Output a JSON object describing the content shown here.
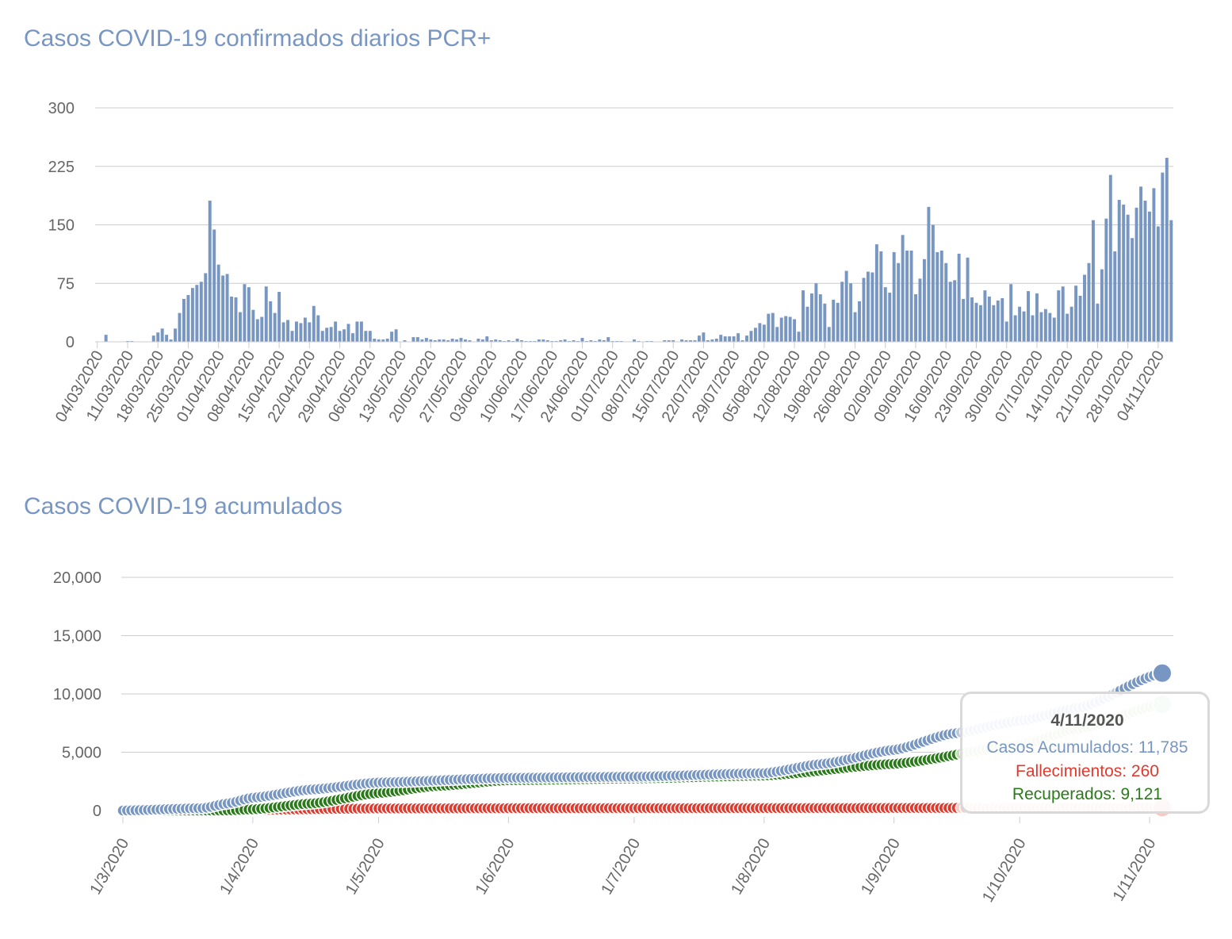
{
  "chart_data": [
    {
      "type": "bar",
      "title": "Casos COVID-19 confirmados diarios PCR+",
      "ylim": [
        0,
        300
      ],
      "yticks": [
        0,
        75,
        150,
        225,
        300
      ],
      "grid": true,
      "start_date": "04/03/2020",
      "xtick_labels": [
        "04/03/2020",
        "11/03/2020",
        "18/03/2020",
        "25/03/2020",
        "01/04/2020",
        "08/04/2020",
        "15/04/2020",
        "22/04/2020",
        "29/04/2020",
        "06/05/2020",
        "13/05/2020",
        "20/05/2020",
        "27/05/2020",
        "03/06/2020",
        "10/06/2020",
        "17/06/2020",
        "24/06/2020",
        "01/07/2020",
        "08/07/2020",
        "15/07/2020",
        "22/07/2020",
        "29/07/2020",
        "05/08/2020",
        "12/08/2020",
        "19/08/2020",
        "26/08/2020",
        "02/09/2020",
        "09/09/2020",
        "16/09/2020",
        "23/09/2020",
        "30/09/2020",
        "07/10/2020",
        "14/10/2020",
        "21/10/2020",
        "28/10/2020",
        "04/11/2020"
      ],
      "values": [
        0,
        0,
        9,
        0,
        0,
        0,
        0,
        1,
        1,
        0,
        0,
        0,
        0,
        8,
        12,
        17,
        9,
        3,
        17,
        37,
        55,
        60,
        69,
        73,
        77,
        88,
        181,
        144,
        99,
        85,
        87,
        58,
        57,
        38,
        74,
        70,
        41,
        29,
        32,
        71,
        52,
        37,
        64,
        25,
        28,
        14,
        26,
        24,
        31,
        25,
        46,
        34,
        14,
        18,
        19,
        26,
        14,
        16,
        23,
        11,
        26,
        26,
        14,
        14,
        4,
        3,
        3,
        4,
        13,
        16,
        0,
        2,
        0,
        6,
        6,
        3,
        5,
        3,
        2,
        3,
        3,
        2,
        4,
        3,
        5,
        3,
        2,
        0,
        4,
        3,
        7,
        2,
        3,
        2,
        1,
        2,
        1,
        4,
        2,
        1,
        1,
        1,
        3,
        3,
        2,
        1,
        1,
        2,
        3,
        1,
        2,
        1,
        5,
        1,
        2,
        1,
        3,
        2,
        6,
        1,
        1,
        1,
        0,
        0,
        3,
        1,
        0,
        1,
        1,
        0,
        0,
        2,
        2,
        2,
        0,
        3,
        2,
        2,
        2,
        8,
        12,
        2,
        3,
        4,
        9,
        7,
        7,
        7,
        11,
        2,
        8,
        14,
        18,
        24,
        22,
        36,
        37,
        19,
        31,
        33,
        32,
        29,
        13,
        66,
        45,
        62,
        75,
        61,
        49,
        19,
        54,
        50,
        77,
        91,
        75,
        38,
        52,
        82,
        90,
        89,
        125,
        116,
        70,
        63,
        115,
        101,
        137,
        117,
        117,
        61,
        81,
        106,
        173,
        150,
        115,
        117,
        101,
        77,
        79,
        113,
        55,
        108,
        57,
        50,
        47,
        66,
        58,
        47,
        53,
        56,
        26,
        74,
        34,
        45,
        39,
        65,
        34,
        62,
        38,
        42,
        37,
        31,
        66,
        71,
        36,
        45,
        72,
        59,
        86,
        101,
        156,
        49,
        93,
        158,
        214,
        116,
        182,
        176,
        163,
        133,
        172,
        199,
        181,
        167,
        197,
        148,
        217,
        236,
        156
      ],
      "color": "#7896c2"
    },
    {
      "type": "scatter",
      "title": "Casos COVID-19 acumulados",
      "ylim": [
        0,
        20000
      ],
      "yticks": [
        "0",
        "5,000",
        "10,000",
        "15,000",
        "20,000"
      ],
      "xtick_labels": [
        "1/3/2020",
        "1/4/2020",
        "1/5/2020",
        "1/6/2020",
        "1/7/2020",
        "1/8/2020",
        "1/9/2020",
        "1/10/2020",
        "1/11/2020"
      ],
      "grid": true,
      "series": [
        {
          "name": "Casos Acumulados",
          "color": "#7896c2",
          "keypoints": [
            [
              "1/3/2020",
              0
            ],
            [
              "20/3/2020",
              200
            ],
            [
              "26/3/2020",
              600
            ],
            [
              "1/4/2020",
              1100
            ],
            [
              "15/4/2020",
              1800
            ],
            [
              "1/5/2020",
              2400
            ],
            [
              "1/6/2020",
              2800
            ],
            [
              "1/7/2020",
              2900
            ],
            [
              "1/8/2020",
              3200
            ],
            [
              "15/8/2020",
              4000
            ],
            [
              "1/9/2020",
              5200
            ],
            [
              "15/9/2020",
              6600
            ],
            [
              "1/10/2020",
              7700
            ],
            [
              "15/10/2020",
              8800
            ],
            [
              "4/11/2020",
              11785
            ]
          ]
        },
        {
          "name": "Fallecimientos",
          "color": "#e03a2e",
          "keypoints": [
            [
              "1/3/2020",
              0
            ],
            [
              "20/3/2020",
              0
            ],
            [
              "1/4/2020",
              60
            ],
            [
              "1/5/2020",
              180
            ],
            [
              "1/6/2020",
              200
            ],
            [
              "1/8/2020",
              210
            ],
            [
              "1/10/2020",
              230
            ],
            [
              "4/11/2020",
              260
            ]
          ]
        },
        {
          "name": "Recuperados",
          "color": "#2a7a1a",
          "keypoints": [
            [
              "1/3/2020",
              0
            ],
            [
              "25/3/2020",
              0
            ],
            [
              "1/4/2020",
              100
            ],
            [
              "15/4/2020",
              600
            ],
            [
              "1/5/2020",
              1500
            ],
            [
              "15/5/2020",
              2100
            ],
            [
              "1/6/2020",
              2600
            ],
            [
              "1/7/2020",
              2750
            ],
            [
              "1/8/2020",
              3000
            ],
            [
              "1/9/2020",
              4000
            ],
            [
              "1/10/2020",
              5600
            ],
            [
              "15/10/2020",
              7000
            ],
            [
              "4/11/2020",
              9121
            ]
          ]
        }
      ],
      "tooltip": {
        "date": "4/11/2020",
        "lines": [
          "Casos Acumulados: 11,785",
          "Fallecimientos: 260",
          "Recuperados: 9,121"
        ]
      }
    }
  ]
}
